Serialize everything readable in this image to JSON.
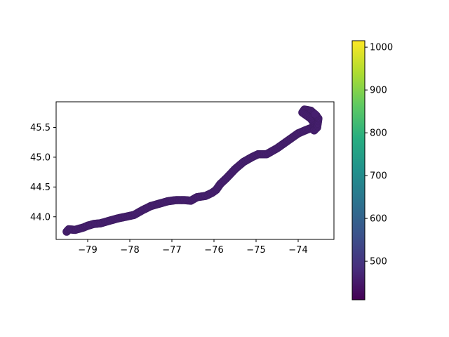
{
  "chart_data": {
    "type": "scatter",
    "title": "",
    "xlabel": "",
    "ylabel": "",
    "xlim": [
      -79.75,
      -73.15
    ],
    "ylim": [
      43.62,
      45.93
    ],
    "x_ticks": [
      -79,
      -78,
      -77,
      -76,
      -75,
      -74
    ],
    "x_tick_labels": [
      "−79",
      "−78",
      "−77",
      "−76",
      "−75",
      "−74"
    ],
    "y_ticks": [
      44.0,
      44.5,
      45.0,
      45.5
    ],
    "y_tick_labels": [
      "44.0",
      "44.5",
      "45.0",
      "45.5"
    ],
    "colorbar": {
      "colormap": "viridis",
      "range": [
        410,
        1015
      ],
      "ticks": [
        500,
        600,
        700,
        800,
        900,
        1000
      ],
      "tick_labels": [
        "500",
        "600",
        "700",
        "800",
        "900",
        "1000"
      ]
    },
    "grid": false,
    "legend": "none",
    "marker_color_value": 460,
    "track": [
      [
        -79.5,
        43.75
      ],
      [
        -79.45,
        43.79
      ],
      [
        -79.3,
        43.78
      ],
      [
        -79.1,
        43.82
      ],
      [
        -79.0,
        43.85
      ],
      [
        -78.85,
        43.88
      ],
      [
        -78.7,
        43.89
      ],
      [
        -78.5,
        43.93
      ],
      [
        -78.3,
        43.97
      ],
      [
        -78.1,
        44.0
      ],
      [
        -77.9,
        44.03
      ],
      [
        -77.7,
        44.11
      ],
      [
        -77.5,
        44.18
      ],
      [
        -77.3,
        44.22
      ],
      [
        -77.1,
        44.26
      ],
      [
        -76.9,
        44.28
      ],
      [
        -76.7,
        44.28
      ],
      [
        -76.55,
        44.27
      ],
      [
        -76.4,
        44.33
      ],
      [
        -76.2,
        44.35
      ],
      [
        -76.05,
        44.4
      ],
      [
        -75.95,
        44.45
      ],
      [
        -75.85,
        44.55
      ],
      [
        -75.7,
        44.65
      ],
      [
        -75.5,
        44.8
      ],
      [
        -75.3,
        44.92
      ],
      [
        -75.1,
        45.0
      ],
      [
        -74.95,
        45.05
      ],
      [
        -74.75,
        45.05
      ],
      [
        -74.5,
        45.15
      ],
      [
        -74.2,
        45.3
      ],
      [
        -74.0,
        45.4
      ],
      [
        -73.8,
        45.46
      ],
      [
        -73.65,
        45.5
      ],
      [
        -73.55,
        45.58
      ],
      [
        -73.57,
        45.7
      ],
      [
        -73.7,
        45.78
      ],
      [
        -73.85,
        45.8
      ],
      [
        -73.9,
        45.75
      ],
      [
        -73.7,
        45.65
      ],
      [
        -73.6,
        45.55
      ],
      [
        -73.62,
        45.45
      ],
      [
        -73.55,
        45.5
      ],
      [
        -73.52,
        45.65
      ],
      [
        -73.6,
        45.72
      ]
    ]
  }
}
